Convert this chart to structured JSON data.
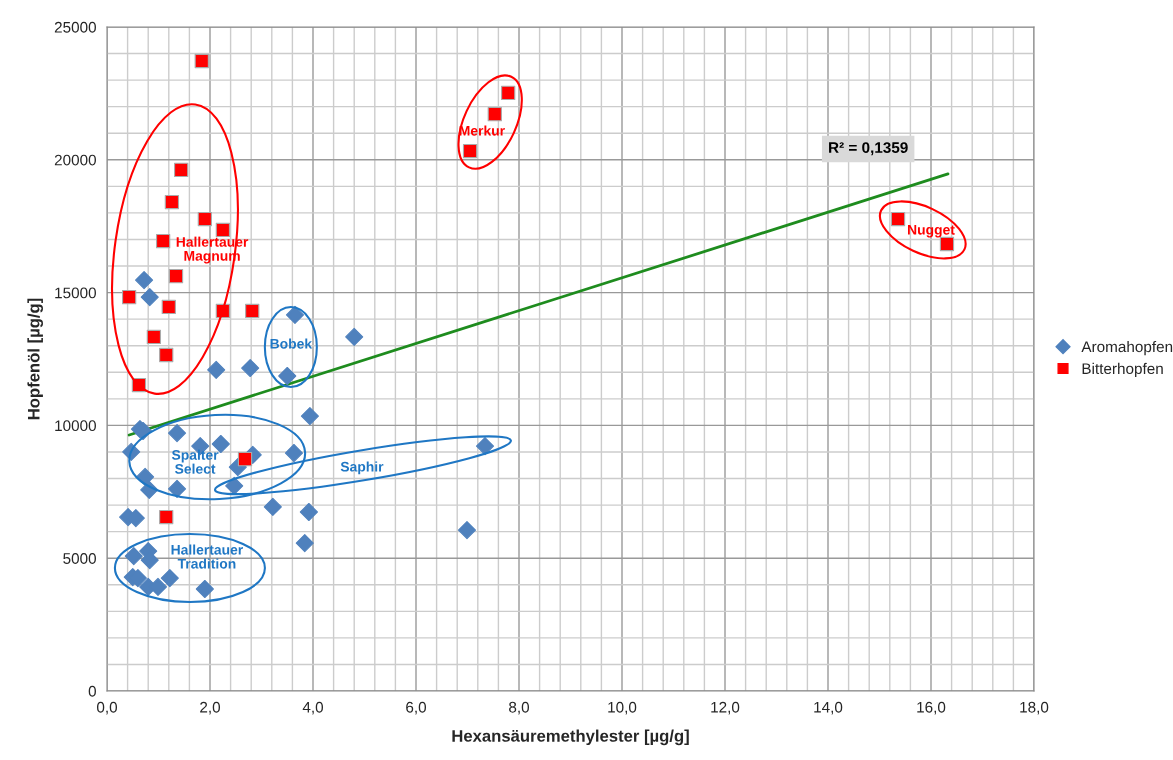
{
  "chart_data": {
    "type": "scatter",
    "xlabel": "Hexansäuremethylester [µg/g]",
    "ylabel": "Hopfenöl [µg/g]",
    "xlim": [
      0,
      18
    ],
    "ylim": [
      0,
      25000
    ],
    "xticks": [
      {
        "value": 0,
        "label": "0,0"
      },
      {
        "value": 2,
        "label": "2,0"
      },
      {
        "value": 4,
        "label": "4,0"
      },
      {
        "value": 6,
        "label": "6,0"
      },
      {
        "value": 8,
        "label": "8,0"
      },
      {
        "value": 10,
        "label": "10,0"
      },
      {
        "value": 12,
        "label": "12,0"
      },
      {
        "value": 14,
        "label": "14,0"
      },
      {
        "value": 16,
        "label": "16,0"
      },
      {
        "value": 18,
        "label": "18,0"
      }
    ],
    "yticks": [
      0,
      5000,
      10000,
      15000,
      20000,
      25000
    ],
    "grid": true,
    "legend": "right",
    "series": [
      {
        "name": "Aromahopfen",
        "color": "#4f81bd",
        "marker": "diamond",
        "x": [
          0.72,
          0.83,
          3.65,
          4.8,
          2.12,
          2.78,
          3.5,
          3.94,
          0.64,
          0.7,
          1.36,
          2.21,
          1.81,
          0.47,
          3.63,
          2.83,
          7.34,
          2.54,
          0.74,
          2.47,
          0.82,
          1.36,
          3.22,
          3.92,
          0.41,
          0.56,
          6.99,
          3.84,
          0.8,
          0.52,
          0.83,
          0.5,
          0.6,
          1.22,
          0.8,
          0.99,
          1.9
        ],
        "values": [
          15470,
          14830,
          14160,
          13330,
          12090,
          12160,
          11860,
          10350,
          9860,
          9790,
          9710,
          9300,
          9220,
          9000,
          8960,
          8890,
          9220,
          8430,
          8060,
          7720,
          7570,
          7610,
          6930,
          6740,
          6550,
          6510,
          6060,
          5570,
          5270,
          5080,
          4930,
          4290,
          4250,
          4250,
          3920,
          3920,
          3840
        ]
      },
      {
        "name": "Bitterhopfen",
        "color": "#ff0000",
        "marker": "square",
        "x": [
          1.84,
          1.44,
          1.26,
          1.9,
          2.25,
          1.09,
          1.34,
          0.43,
          1.2,
          2.25,
          2.82,
          0.91,
          1.15,
          0.62,
          2.68,
          1.15,
          7.79,
          7.53,
          7.05,
          15.36,
          16.31
        ],
        "values": [
          23720,
          19620,
          18410,
          17770,
          17360,
          16940,
          15620,
          14830,
          14460,
          14310,
          14310,
          13330,
          12650,
          11520,
          8730,
          6550,
          22520,
          21720,
          20330,
          17770,
          16830
        ]
      },
      {
        "type": "line",
        "color": "#1e8c1e",
        "x": [
          0.43,
          16.33
        ],
        "values": [
          9640,
          19470
        ]
      }
    ],
    "annotations": [
      "Hallertauer\nMagnum",
      "Bobek",
      "Spalter\nSelect",
      "Saphir",
      "Hallertauer\nTradition",
      "Merkur",
      "Nugget",
      "R² = 0,1359"
    ]
  }
}
